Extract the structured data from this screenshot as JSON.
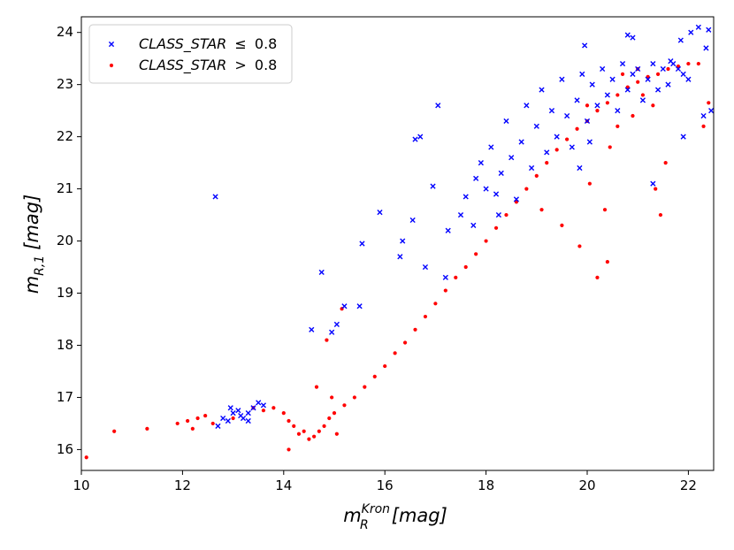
{
  "chart_data": {
    "type": "scatter",
    "xlabel": {
      "base": "m",
      "sub": "R",
      "sup": "Kron",
      "unit": "[mag]"
    },
    "ylabel": {
      "base": "m",
      "sub": "R,1",
      "unit": "[mag]"
    },
    "xlim": [
      10,
      22.5
    ],
    "ylim": [
      15.6,
      24.3
    ],
    "xticks": [
      10,
      12,
      14,
      16,
      18,
      20,
      22
    ],
    "yticks": [
      16,
      17,
      18,
      19,
      20,
      21,
      22,
      23,
      24
    ],
    "legend_position": "top-left",
    "grid": false,
    "series": [
      {
        "key": "blue",
        "name_parts": {
          "var": "CLASS_STAR",
          "op": "≤",
          "value": "0.8"
        },
        "color": "#0000ff",
        "marker": "x",
        "points": [
          [
            12.65,
            20.85
          ],
          [
            12.7,
            16.45
          ],
          [
            12.8,
            16.6
          ],
          [
            12.9,
            16.55
          ],
          [
            13.0,
            16.7
          ],
          [
            13.1,
            16.75
          ],
          [
            13.2,
            16.6
          ],
          [
            13.3,
            16.7
          ],
          [
            13.4,
            16.8
          ],
          [
            13.5,
            16.9
          ],
          [
            13.6,
            16.85
          ],
          [
            13.3,
            16.55
          ],
          [
            13.15,
            16.65
          ],
          [
            12.95,
            16.8
          ],
          [
            14.55,
            18.3
          ],
          [
            14.75,
            19.4
          ],
          [
            14.95,
            18.25
          ],
          [
            15.05,
            18.4
          ],
          [
            15.2,
            18.75
          ],
          [
            15.5,
            18.75
          ],
          [
            15.9,
            20.55
          ],
          [
            15.55,
            19.95
          ],
          [
            16.35,
            20.0
          ],
          [
            16.55,
            20.4
          ],
          [
            16.6,
            21.95
          ],
          [
            16.7,
            22.0
          ],
          [
            16.95,
            21.05
          ],
          [
            17.05,
            22.6
          ],
          [
            17.25,
            20.2
          ],
          [
            17.5,
            20.5
          ],
          [
            17.6,
            20.85
          ],
          [
            17.8,
            21.2
          ],
          [
            17.9,
            21.5
          ],
          [
            18.0,
            21.0
          ],
          [
            18.1,
            21.8
          ],
          [
            18.2,
            20.9
          ],
          [
            18.3,
            21.3
          ],
          [
            18.4,
            22.3
          ],
          [
            18.5,
            21.6
          ],
          [
            18.6,
            20.8
          ],
          [
            18.7,
            21.9
          ],
          [
            18.8,
            22.6
          ],
          [
            18.9,
            21.4
          ],
          [
            19.0,
            22.2
          ],
          [
            19.1,
            22.9
          ],
          [
            19.2,
            21.7
          ],
          [
            19.3,
            22.5
          ],
          [
            19.4,
            22.0
          ],
          [
            19.5,
            23.1
          ],
          [
            19.6,
            22.4
          ],
          [
            19.7,
            21.8
          ],
          [
            19.8,
            22.7
          ],
          [
            19.9,
            23.2
          ],
          [
            20.0,
            22.3
          ],
          [
            20.1,
            23.0
          ],
          [
            20.2,
            22.6
          ],
          [
            20.3,
            23.3
          ],
          [
            20.4,
            22.8
          ],
          [
            20.5,
            23.1
          ],
          [
            20.6,
            22.5
          ],
          [
            20.7,
            23.4
          ],
          [
            20.8,
            22.9
          ],
          [
            20.9,
            23.2
          ],
          [
            21.0,
            23.3
          ],
          [
            21.1,
            22.7
          ],
          [
            21.2,
            23.1
          ],
          [
            21.3,
            23.4
          ],
          [
            21.4,
            22.9
          ],
          [
            21.5,
            23.3
          ],
          [
            21.6,
            23.0
          ],
          [
            21.7,
            23.4
          ],
          [
            21.8,
            23.3
          ],
          [
            21.9,
            23.2
          ],
          [
            22.0,
            23.1
          ],
          [
            21.85,
            23.85
          ],
          [
            22.05,
            24.0
          ],
          [
            22.2,
            24.1
          ],
          [
            22.35,
            23.7
          ],
          [
            22.4,
            24.05
          ],
          [
            20.8,
            23.95
          ],
          [
            20.9,
            23.9
          ],
          [
            19.95,
            23.75
          ],
          [
            21.65,
            23.45
          ],
          [
            21.9,
            22.0
          ],
          [
            22.3,
            22.4
          ],
          [
            22.45,
            22.5
          ],
          [
            21.3,
            21.1
          ],
          [
            20.05,
            21.9
          ],
          [
            19.85,
            21.4
          ],
          [
            18.25,
            20.5
          ],
          [
            17.75,
            20.3
          ],
          [
            16.8,
            19.5
          ],
          [
            16.3,
            19.7
          ],
          [
            17.2,
            19.3
          ]
        ]
      },
      {
        "key": "red",
        "name_parts": {
          "var": "CLASS_STAR",
          "op": ">",
          "value": "0.8"
        },
        "color": "#ff0000",
        "marker": "o",
        "points": [
          [
            10.1,
            15.85
          ],
          [
            10.65,
            16.35
          ],
          [
            11.3,
            16.4
          ],
          [
            11.9,
            16.5
          ],
          [
            12.1,
            16.55
          ],
          [
            12.3,
            16.6
          ],
          [
            12.45,
            16.65
          ],
          [
            12.6,
            16.5
          ],
          [
            13.0,
            16.6
          ],
          [
            13.6,
            16.75
          ],
          [
            13.8,
            16.8
          ],
          [
            14.0,
            16.7
          ],
          [
            14.1,
            16.55
          ],
          [
            14.2,
            16.45
          ],
          [
            14.3,
            16.3
          ],
          [
            14.4,
            16.35
          ],
          [
            14.5,
            16.2
          ],
          [
            14.6,
            16.25
          ],
          [
            14.7,
            16.35
          ],
          [
            14.8,
            16.45
          ],
          [
            14.9,
            16.6
          ],
          [
            15.0,
            16.7
          ],
          [
            15.2,
            16.85
          ],
          [
            15.4,
            17.0
          ],
          [
            15.6,
            17.2
          ],
          [
            15.8,
            17.4
          ],
          [
            16.0,
            17.6
          ],
          [
            16.2,
            17.85
          ],
          [
            16.4,
            18.05
          ],
          [
            16.6,
            18.3
          ],
          [
            16.8,
            18.55
          ],
          [
            17.0,
            18.8
          ],
          [
            17.2,
            19.05
          ],
          [
            17.4,
            19.3
          ],
          [
            17.6,
            19.5
          ],
          [
            17.8,
            19.75
          ],
          [
            18.0,
            20.0
          ],
          [
            18.2,
            20.25
          ],
          [
            18.4,
            20.5
          ],
          [
            18.6,
            20.75
          ],
          [
            18.8,
            21.0
          ],
          [
            19.0,
            21.25
          ],
          [
            19.2,
            21.5
          ],
          [
            19.4,
            21.75
          ],
          [
            19.6,
            21.95
          ],
          [
            19.8,
            22.15
          ],
          [
            20.0,
            22.3
          ],
          [
            20.2,
            22.5
          ],
          [
            20.4,
            22.65
          ],
          [
            20.6,
            22.8
          ],
          [
            20.8,
            22.95
          ],
          [
            21.0,
            23.05
          ],
          [
            21.2,
            23.15
          ],
          [
            21.4,
            23.2
          ],
          [
            21.6,
            23.3
          ],
          [
            21.8,
            23.35
          ],
          [
            22.0,
            23.4
          ],
          [
            22.2,
            23.4
          ],
          [
            22.4,
            22.65
          ],
          [
            22.3,
            22.2
          ],
          [
            14.1,
            16.0
          ],
          [
            14.95,
            17.0
          ],
          [
            14.85,
            18.1
          ],
          [
            15.15,
            18.7
          ],
          [
            14.65,
            17.2
          ],
          [
            13.4,
            16.8
          ],
          [
            12.2,
            16.4
          ],
          [
            15.05,
            16.3
          ],
          [
            19.1,
            20.6
          ],
          [
            19.85,
            19.9
          ],
          [
            20.35,
            20.6
          ],
          [
            21.35,
            21.0
          ],
          [
            21.55,
            21.5
          ],
          [
            21.45,
            20.5
          ],
          [
            20.45,
            21.8
          ],
          [
            19.5,
            20.3
          ],
          [
            20.05,
            21.1
          ],
          [
            20.4,
            19.6
          ],
          [
            20.2,
            19.3
          ],
          [
            20.0,
            22.6
          ],
          [
            20.6,
            22.2
          ],
          [
            20.9,
            22.4
          ],
          [
            21.1,
            22.8
          ],
          [
            21.3,
            22.6
          ],
          [
            20.7,
            23.2
          ],
          [
            21.0,
            23.3
          ]
        ]
      }
    ]
  }
}
